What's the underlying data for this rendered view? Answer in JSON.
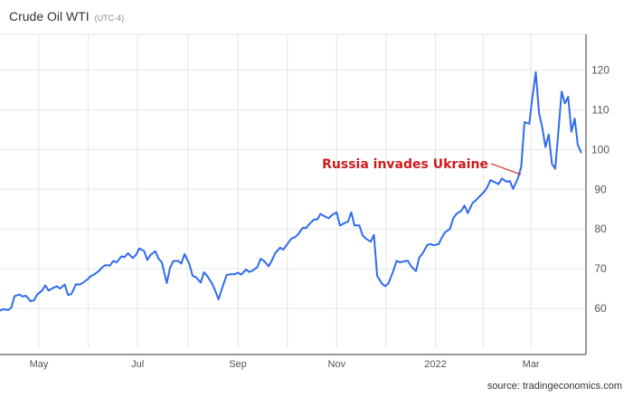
{
  "title": "Crude Oil WTI",
  "timezone": "(UTC-4)",
  "source": "source: tradingeconomics.com",
  "colors": {
    "line": "#2f6bef",
    "annotation": "#cc1b1b",
    "grid": "#e6e6e6",
    "axis": "#333333"
  },
  "chart_data": {
    "type": "line",
    "title": "Crude Oil WTI",
    "subtitle": "(UTC-4)",
    "xlabel": "",
    "ylabel": "",
    "y_axis_side": "right",
    "ylim": [
      50,
      129
    ],
    "y_ticks": [
      60,
      70,
      80,
      90,
      100,
      110,
      120
    ],
    "x_tick_labels": [
      "May",
      "Jul",
      "Sep",
      "Nov",
      "2022",
      "Mar"
    ],
    "x_ticks": [
      "2021-05-01",
      "2021-07-01",
      "2021-09-01",
      "2021-11-01",
      "2022-01-01",
      "2022-03-01"
    ],
    "xlim": [
      "2021-04-07",
      "2022-04-04"
    ],
    "grid": true,
    "annotation": {
      "text": "Russia invades Ukraine",
      "date": "2022-02-24",
      "value": 92.8
    },
    "series": [
      {
        "x": [
          "2021-04-07",
          "2021-04-09",
          "2021-04-12",
          "2021-04-14",
          "2021-04-16",
          "2021-04-19",
          "2021-04-21",
          "2021-04-23",
          "2021-04-26",
          "2021-04-28",
          "2021-04-30",
          "2021-05-03",
          "2021-05-05",
          "2021-05-07",
          "2021-05-10",
          "2021-05-12",
          "2021-05-14",
          "2021-05-17",
          "2021-05-19",
          "2021-05-21",
          "2021-05-24",
          "2021-05-26",
          "2021-05-28",
          "2021-05-31",
          "2021-06-02",
          "2021-06-04",
          "2021-06-07",
          "2021-06-09",
          "2021-06-11",
          "2021-06-14",
          "2021-06-16",
          "2021-06-18",
          "2021-06-21",
          "2021-06-23",
          "2021-06-25",
          "2021-06-28",
          "2021-06-30",
          "2021-07-02",
          "2021-07-05",
          "2021-07-07",
          "2021-07-09",
          "2021-07-12",
          "2021-07-14",
          "2021-07-16",
          "2021-07-19",
          "2021-07-21",
          "2021-07-23",
          "2021-07-26",
          "2021-07-28",
          "2021-07-30",
          "2021-08-02",
          "2021-08-04",
          "2021-08-06",
          "2021-08-09",
          "2021-08-11",
          "2021-08-13",
          "2021-08-16",
          "2021-08-18",
          "2021-08-20",
          "2021-08-23",
          "2021-08-25",
          "2021-08-27",
          "2021-08-30",
          "2021-09-01",
          "2021-09-03",
          "2021-09-06",
          "2021-09-08",
          "2021-09-10",
          "2021-09-13",
          "2021-09-15",
          "2021-09-17",
          "2021-09-20",
          "2021-09-22",
          "2021-09-24",
          "2021-09-27",
          "2021-09-29",
          "2021-10-01",
          "2021-10-04",
          "2021-10-06",
          "2021-10-08",
          "2021-10-11",
          "2021-10-13",
          "2021-10-15",
          "2021-10-18",
          "2021-10-20",
          "2021-10-22",
          "2021-10-25",
          "2021-10-27",
          "2021-10-29",
          "2021-11-01",
          "2021-11-03",
          "2021-11-05",
          "2021-11-08",
          "2021-11-10",
          "2021-11-12",
          "2021-11-15",
          "2021-11-17",
          "2021-11-19",
          "2021-11-22",
          "2021-11-24",
          "2021-11-26",
          "2021-11-29",
          "2021-12-01",
          "2021-12-03",
          "2021-12-06",
          "2021-12-08",
          "2021-12-10",
          "2021-12-13",
          "2021-12-15",
          "2021-12-17",
          "2021-12-20",
          "2021-12-22",
          "2021-12-24",
          "2021-12-27",
          "2021-12-29",
          "2021-12-31",
          "2022-01-03",
          "2022-01-05",
          "2022-01-07",
          "2022-01-10",
          "2022-01-12",
          "2022-01-14",
          "2022-01-17",
          "2022-01-19",
          "2022-01-21",
          "2022-01-24",
          "2022-01-26",
          "2022-01-28",
          "2022-01-31",
          "2022-02-02",
          "2022-02-04",
          "2022-02-07",
          "2022-02-09",
          "2022-02-11",
          "2022-02-14",
          "2022-02-16",
          "2022-02-18",
          "2022-02-21",
          "2022-02-23",
          "2022-02-25",
          "2022-02-28",
          "2022-03-02",
          "2022-03-04",
          "2022-03-06",
          "2022-03-08",
          "2022-03-10",
          "2022-03-12",
          "2022-03-14",
          "2022-03-16",
          "2022-03-18",
          "2022-03-20",
          "2022-03-22",
          "2022-03-24",
          "2022-03-26",
          "2022-03-28",
          "2022-03-30",
          "2022-04-01"
        ],
        "y": [
          59.5,
          59.8,
          59.6,
          60.2,
          63.1,
          63.5,
          63.0,
          63.2,
          61.8,
          62.1,
          63.5,
          64.5,
          65.8,
          64.5,
          65.2,
          65.6,
          65.0,
          66.0,
          63.4,
          63.6,
          66.1,
          66.0,
          66.4,
          67.3,
          68.1,
          68.5,
          69.4,
          70.3,
          70.9,
          70.8,
          72.0,
          71.6,
          73.1,
          72.9,
          73.9,
          72.7,
          73.5,
          75.1,
          74.5,
          72.2,
          73.5,
          74.4,
          72.5,
          71.6,
          66.4,
          70.2,
          71.9,
          72.0,
          71.3,
          73.7,
          71.2,
          68.2,
          67.9,
          66.5,
          69.1,
          68.2,
          66.3,
          64.4,
          62.3,
          66.0,
          68.4,
          68.6,
          68.6,
          69.0,
          68.5,
          69.8,
          69.2,
          69.5,
          70.4,
          72.5,
          72.0,
          70.6,
          72.1,
          73.9,
          75.3,
          74.8,
          75.9,
          77.6,
          77.9,
          78.6,
          80.3,
          80.2,
          81.2,
          82.4,
          82.4,
          83.8,
          83.1,
          82.7,
          83.5,
          84.2,
          80.9,
          81.3,
          81.9,
          84.2,
          80.9,
          80.9,
          78.4,
          77.6,
          76.8,
          78.5,
          68.2,
          66.2,
          65.6,
          66.3,
          69.5,
          72.0,
          71.6,
          71.9,
          72.0,
          70.6,
          69.4,
          72.8,
          73.8,
          76.0,
          76.2,
          75.9,
          76.2,
          77.9,
          79.2,
          80.0,
          82.7,
          83.8,
          84.6,
          85.9,
          84.0,
          86.6,
          87.2,
          88.1,
          89.3,
          90.5,
          92.3,
          91.7,
          91.3,
          92.7,
          91.9,
          92.1,
          90.1,
          92.8,
          95.7,
          106.9,
          106.5,
          113.4,
          119.5,
          109.2,
          105.5,
          100.6,
          103.8,
          96.4,
          95.2,
          104.9,
          114.6,
          111.6,
          113.3,
          104.5,
          107.8,
          101.1,
          99.3
        ]
      }
    ]
  }
}
